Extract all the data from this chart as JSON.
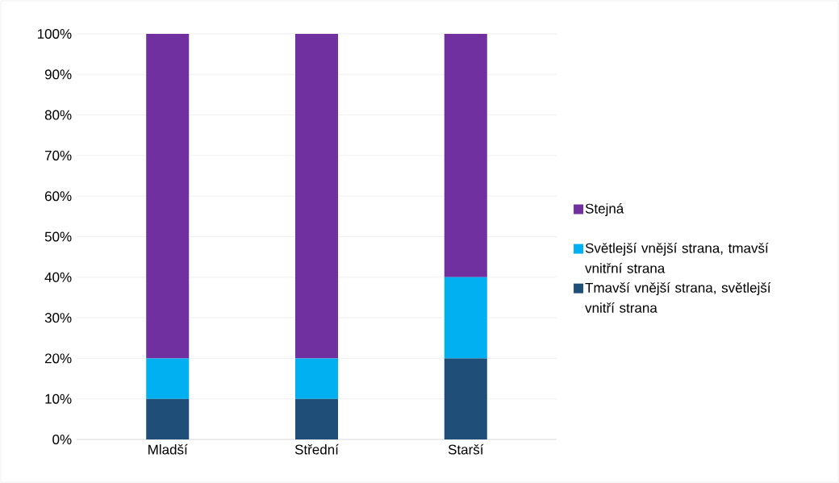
{
  "chart_data": {
    "type": "bar",
    "stacked": true,
    "categories": [
      "Mladší",
      "Střední",
      "Starší"
    ],
    "series": [
      {
        "name": "Tmavší vnější strana, světlejší vnitří strana",
        "color": "#1f4e79",
        "values": [
          10,
          10,
          20
        ]
      },
      {
        "name": "Světlejší vnější strana, tmavší vnitřní strana",
        "color": "#00b0f0",
        "values": [
          10,
          10,
          20
        ]
      },
      {
        "name": "Stejná",
        "color": "#7030a0",
        "values": [
          80,
          80,
          60
        ]
      }
    ],
    "ylim": [
      0,
      100
    ],
    "yticks": [
      {
        "value": 0,
        "label": "0%"
      },
      {
        "value": 10,
        "label": "10%"
      },
      {
        "value": 20,
        "label": "20%"
      },
      {
        "value": 30,
        "label": "30%"
      },
      {
        "value": 40,
        "label": "40%"
      },
      {
        "value": 50,
        "label": "50%"
      },
      {
        "value": 60,
        "label": "60%"
      },
      {
        "value": 70,
        "label": "70%"
      },
      {
        "value": 80,
        "label": "80%"
      },
      {
        "value": 90,
        "label": "90%"
      },
      {
        "value": 100,
        "label": "100%"
      }
    ],
    "grid": "y",
    "legend": "right"
  }
}
